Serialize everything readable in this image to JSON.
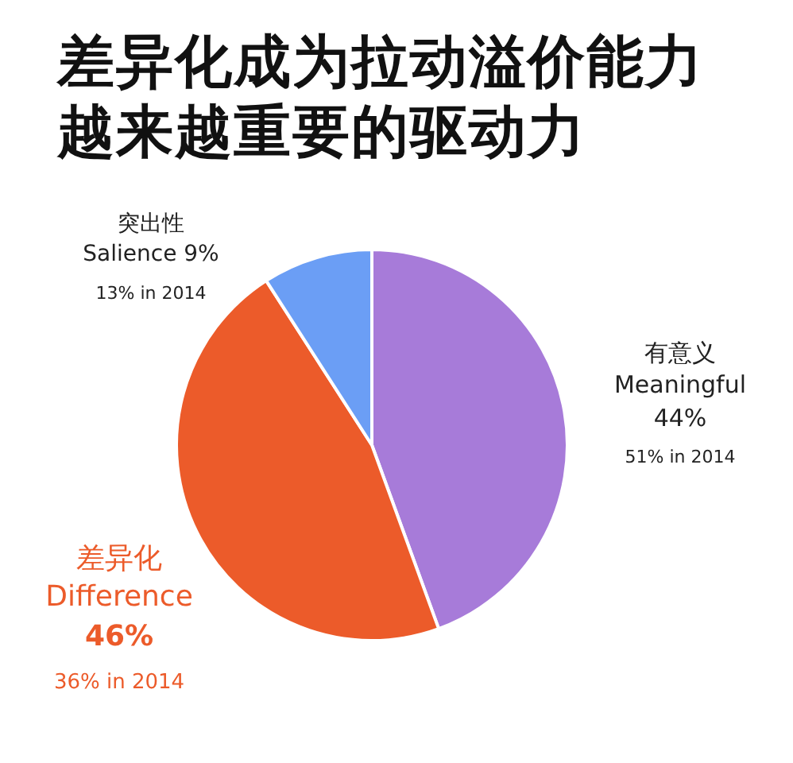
{
  "chart_data": {
    "type": "pie",
    "title": "差异化成为拉动溢价能力越来越重要的驱动力",
    "categories": [
      "有意义\nMeaningful",
      "差异化\nDifference",
      "突出性\nSalience"
    ],
    "values": [
      44,
      46,
      9
    ],
    "colors": [
      "#a77bd9",
      "#ec5b2a",
      "#6b9ef5"
    ],
    "value_labels": [
      "44%",
      "46%",
      "9%"
    ],
    "annotations": [
      "51% in 2014",
      "36% in 2014",
      "13% in 2014"
    ],
    "legend": false
  }
}
